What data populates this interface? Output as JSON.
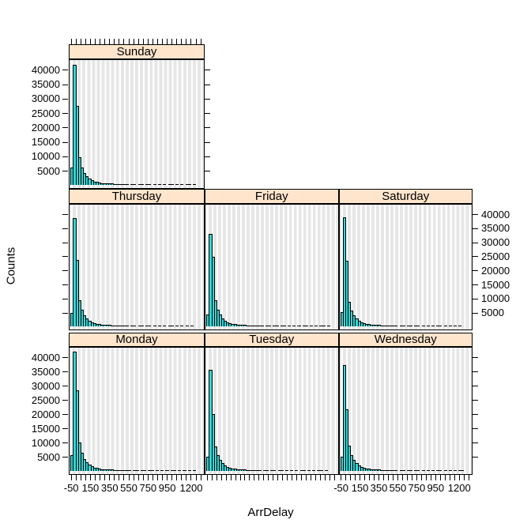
{
  "figure": {
    "ylabel": "Counts",
    "xlabel": "ArrDelay",
    "colors": {
      "page_bg": "#FFFFFF",
      "strip_bg": "#FFE5CC",
      "panel_bg": "#E6E6E6",
      "grid_line": "#FFFFFF",
      "bar_fill": "#35D6D6",
      "bar_border": "#000000",
      "text": "#000000"
    }
  },
  "chart_data": {
    "type": "bar",
    "subtype": "trellis-histogram",
    "title": "",
    "xlabel": "ArrDelay",
    "ylabel": "Counts",
    "xlim": [
      -76,
      1340
    ],
    "ylim": [
      -1100,
      43800
    ],
    "y_ticks": [
      5000,
      10000,
      15000,
      20000,
      25000,
      30000,
      35000,
      40000
    ],
    "y_tick_labels": [
      "5000",
      "10000",
      "15000",
      "20000",
      "25000",
      "30000",
      "35000",
      "40000"
    ],
    "x_minor_tick_start": -50,
    "x_minor_tick_step": 50,
    "x_tick_labeled_values": [
      -50,
      150,
      350,
      550,
      750,
      950,
      1200
    ],
    "x_tick_labels": [
      "-50",
      "150",
      "350",
      "550",
      "750",
      "950",
      "1200"
    ],
    "grid": "vertical-at-minor-ticks",
    "bin_start": -65,
    "bin_width": 26,
    "panels": [
      {
        "label": "Sunday",
        "row": 0,
        "col": 0,
        "counts": [
          5700,
          41300,
          27000,
          9400,
          5800,
          3900,
          2650,
          1850,
          1300,
          950,
          700,
          520,
          400,
          310,
          240,
          190,
          155,
          125,
          100,
          85,
          70,
          60,
          50,
          0,
          38,
          33,
          0,
          25,
          22,
          0,
          17,
          15,
          0,
          11,
          0,
          9,
          0,
          7,
          0,
          5,
          5,
          0,
          4,
          0,
          3,
          0,
          2,
          2,
          0,
          1
        ]
      },
      {
        "label": "Thursday",
        "row": 1,
        "col": 0,
        "counts": [
          4400,
          38200,
          23400,
          8900,
          5600,
          3750,
          2550,
          1800,
          1280,
          930,
          690,
          510,
          395,
          305,
          235,
          188,
          152,
          122,
          100,
          82,
          68,
          58,
          48,
          0,
          37,
          31,
          0,
          25,
          21,
          0,
          17,
          14,
          0,
          11,
          0,
          9,
          0,
          7,
          0,
          6,
          5,
          0,
          4,
          0,
          3,
          0,
          2,
          0,
          1,
          0
        ]
      },
      {
        "label": "Friday",
        "row": 1,
        "col": 1,
        "counts": [
          4000,
          32600,
          24500,
          9100,
          5700,
          3850,
          2600,
          1820,
          1290,
          940,
          695,
          515,
          398,
          308,
          238,
          190,
          154,
          124,
          101,
          83,
          69,
          58,
          49,
          0,
          37,
          32,
          0,
          25,
          21,
          0,
          17,
          15,
          0,
          12,
          0,
          9,
          0,
          7,
          0,
          6,
          5,
          0,
          4,
          0,
          3,
          0,
          2,
          2,
          0,
          1
        ]
      },
      {
        "label": "Saturday",
        "row": 1,
        "col": 2,
        "counts": [
          4900,
          38500,
          23000,
          8500,
          5300,
          3600,
          2450,
          1720,
          1230,
          890,
          660,
          495,
          380,
          295,
          228,
          182,
          148,
          118,
          96,
          79,
          66,
          55,
          46,
          0,
          35,
          30,
          0,
          24,
          20,
          0,
          16,
          13,
          0,
          10,
          0,
          8,
          0,
          6,
          0,
          5,
          4,
          0,
          3,
          0,
          2,
          0,
          2,
          0,
          1,
          0
        ]
      },
      {
        "label": "Monday",
        "row": 2,
        "col": 0,
        "counts": [
          5200,
          41500,
          28100,
          9700,
          6000,
          4000,
          2700,
          1900,
          1350,
          980,
          720,
          540,
          410,
          320,
          250,
          195,
          160,
          130,
          105,
          88,
          72,
          60,
          50,
          42,
          0,
          33,
          28,
          0,
          22,
          19,
          0,
          15,
          13,
          0,
          10,
          0,
          8,
          0,
          6,
          0,
          5,
          4,
          0,
          3,
          0,
          3,
          0,
          2,
          0,
          1
        ]
      },
      {
        "label": "Tuesday",
        "row": 2,
        "col": 1,
        "counts": [
          4600,
          35100,
          19600,
          8200,
          5200,
          3500,
          2400,
          1700,
          1200,
          880,
          650,
          490,
          375,
          290,
          225,
          180,
          145,
          115,
          95,
          78,
          65,
          55,
          0,
          40,
          35,
          0,
          27,
          23,
          0,
          18,
          16,
          0,
          12,
          0,
          10,
          0,
          8,
          0,
          6,
          5,
          0,
          4,
          0,
          3,
          0,
          2,
          2,
          0,
          1,
          0
        ]
      },
      {
        "label": "Wednesday",
        "row": 2,
        "col": 2,
        "counts": [
          4800,
          37000,
          21400,
          8600,
          5400,
          3650,
          2500,
          1750,
          1250,
          900,
          670,
          500,
          385,
          300,
          230,
          185,
          150,
          120,
          98,
          80,
          67,
          56,
          47,
          0,
          36,
          30,
          0,
          24,
          20,
          0,
          16,
          14,
          0,
          11,
          0,
          9,
          0,
          7,
          0,
          5,
          4,
          0,
          3,
          0,
          3,
          0,
          2,
          0,
          1,
          1
        ]
      }
    ]
  }
}
